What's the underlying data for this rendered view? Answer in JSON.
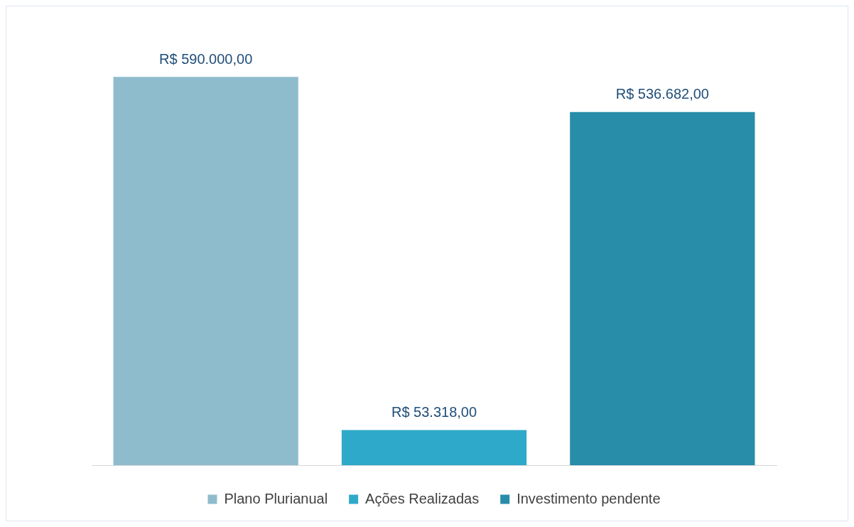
{
  "chart_data": {
    "type": "bar",
    "categories": [
      null,
      null,
      null
    ],
    "legend": "bottom",
    "stacked": true,
    "series": [
      {
        "name": "Plano Plurianual",
        "color": "#8fbccc",
        "values": [
          590000,
          null,
          null
        ],
        "value_labels": [
          "R$ 590.000,00",
          null,
          null
        ]
      },
      {
        "name": "Ações Realizadas",
        "color": "#2fa9c9",
        "values": [
          null,
          53318,
          null
        ],
        "value_labels": [
          null,
          "R$ 53.318,00",
          null
        ]
      },
      {
        "name": "Investimento pendente",
        "color": "#278da8",
        "values": [
          null,
          null,
          536682
        ],
        "value_labels": [
          null,
          null,
          "R$ 536.682,00"
        ]
      }
    ]
  }
}
